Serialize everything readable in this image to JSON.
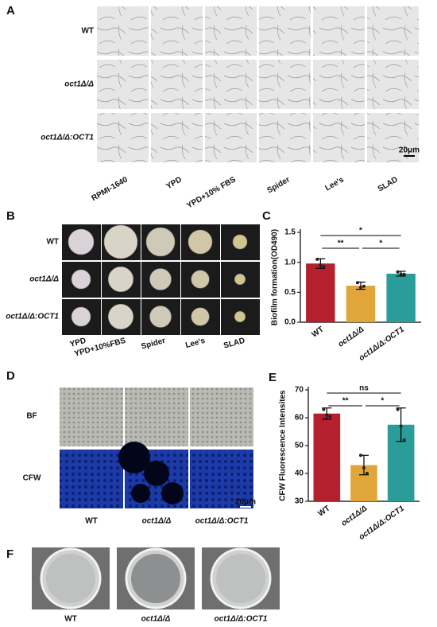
{
  "panels": {
    "a": "A",
    "b": "B",
    "c": "C",
    "d": "D",
    "e": "E",
    "f": "F"
  },
  "panel_a": {
    "rows": [
      "WT",
      "oct1Δ/Δ",
      "oct1Δ/Δ:OCT1"
    ],
    "columns": [
      "RPMI-1640",
      "YPD",
      "YPD+10% FBS",
      "Spider",
      "Lee's",
      "SLAD"
    ],
    "scale_bar": "20μm"
  },
  "panel_b": {
    "rows": [
      "WT",
      "oct1Δ/Δ",
      "oct1Δ/Δ:OCT1"
    ],
    "columns": [
      "YPD",
      "YPD+10%FBS",
      "Spider",
      "Lee's",
      "SLAD"
    ]
  },
  "panel_d": {
    "rows": [
      "BF",
      "CFW"
    ],
    "columns": [
      "WT",
      "oct1Δ/Δ",
      "oct1Δ/Δ:OCT1"
    ],
    "scale_bar": "20μm"
  },
  "panel_f": {
    "columns": [
      "WT",
      "oct1Δ/Δ",
      "oct1Δ/Δ:OCT1"
    ]
  },
  "chart_data": [
    {
      "type": "bar",
      "y_label": "Biofilm formation(OD490)",
      "categories": [
        "WT",
        "oct1Δ/Δ",
        "oct1Δ/Δ:OCT1"
      ],
      "values": [
        0.98,
        0.61,
        0.81
      ],
      "errors": [
        0.08,
        0.06,
        0.04
      ],
      "points": [
        [
          1.05,
          0.95,
          0.93
        ],
        [
          0.66,
          0.58,
          0.6
        ],
        [
          0.84,
          0.8,
          0.8
        ]
      ],
      "colors": [
        "#b5202e",
        "#e0a63a",
        "#2a9d9a"
      ],
      "ylim": [
        0,
        1.5
      ],
      "yticks": [
        {
          "value": 0,
          "label": "0.0"
        },
        0.5,
        {
          "value": 1,
          "label": "1.0"
        },
        1.5
      ],
      "significance": [
        {
          "from": "WT",
          "to": "oct1Δ/Δ",
          "label": "**"
        },
        {
          "from": "WT",
          "to": "oct1Δ/Δ:OCT1",
          "label": "*"
        },
        {
          "from": "oct1Δ/Δ",
          "to": "oct1Δ/Δ:OCT1",
          "label": "*"
        }
      ]
    },
    {
      "type": "bar",
      "y_label": "CFW Fluorescence Intensites",
      "categories": [
        "WT",
        "oct1Δ/Δ",
        "oct1Δ/Δ:OCT1"
      ],
      "values": [
        61.5,
        43,
        57.5
      ],
      "errors": [
        2,
        3.5,
        6
      ],
      "points": [
        [
          63,
          61,
          60.5
        ],
        [
          46.5,
          42,
          40
        ],
        [
          63,
          57,
          52
        ]
      ],
      "colors": [
        "#b5202e",
        "#e0a63a",
        "#2a9d9a"
      ],
      "ylim": [
        30,
        70
      ],
      "yticks": [
        30,
        40,
        50,
        60,
        70
      ],
      "significance": [
        {
          "from": "WT",
          "to": "oct1Δ/Δ",
          "label": "**"
        },
        {
          "from": "WT",
          "to": "oct1Δ/Δ:OCT1",
          "label": "ns"
        },
        {
          "from": "oct1Δ/Δ",
          "to": "oct1Δ/Δ:OCT1",
          "label": "*"
        }
      ]
    }
  ]
}
